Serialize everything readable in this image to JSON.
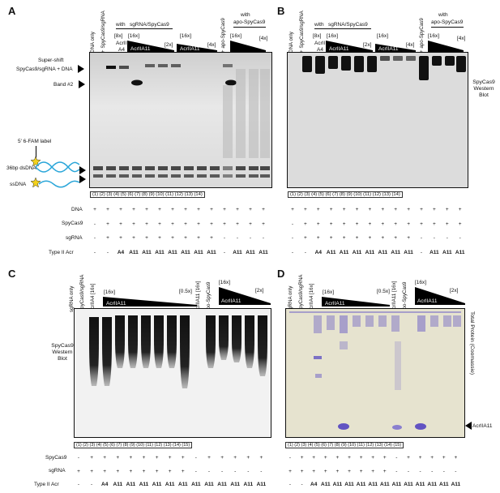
{
  "panels": {
    "A": {
      "label": "A",
      "headers": [
        "DNA only",
        "+ SpyCas9/sgRNA",
        "with",
        "sgRNA/SpyCas9",
        "[8x]",
        "AcrII",
        "A4",
        "[16x]",
        "AcrIIA11",
        "[2x]",
        "[16x]",
        "AcrIIA11",
        "[4x]",
        "+ apo-SpyCas9",
        "with",
        "apo-SpyCas9",
        "[16x]"
      ],
      "left_annotations": [
        "Super-shift",
        "SpyCas9/sgRNA + DNA",
        "Band #2",
        "5' 6-FAM label",
        "36bp dsDNA",
        "ssDNA"
      ],
      "lanes": "(1)   (2)   (3)   (4)   (5)   (6)   (7)   (8)   (9)  (10)  (11)  (12)  (13)  (14)",
      "rows": [
        {
          "label": "DNA",
          "values": [
            "+",
            "+",
            "+",
            "+",
            "+",
            "+",
            "+",
            "+",
            "+",
            "+",
            "+",
            "+",
            "+",
            "+"
          ]
        },
        {
          "label": "SpyCas9",
          "values": [
            "-",
            "+",
            "+",
            "+",
            "+",
            "+",
            "+",
            "+",
            "+",
            "+",
            "+",
            "+",
            "+",
            "+"
          ]
        },
        {
          "label": "sgRNA",
          "values": [
            "-",
            "+",
            "+",
            "+",
            "+",
            "+",
            "+",
            "+",
            "+",
            "+",
            "-",
            "-",
            "-",
            "-"
          ]
        },
        {
          "label": "Type II Acr",
          "values": [
            "-",
            "-",
            "A4",
            "A11",
            "A11",
            "A11",
            "A11",
            "A11",
            "A11",
            "A11",
            "-",
            "A11",
            "A11",
            "A11"
          ]
        }
      ]
    },
    "B": {
      "label": "B",
      "headers": [
        "DNA only",
        "+ SpyCas9/sgRNA",
        "with",
        "sgRNA/SpyCas9",
        "[8x]",
        "AcrII",
        "A4",
        "[16x]",
        "AcrIIA11",
        "[2x]",
        "[16x]",
        "AcrIIA11",
        "[4x]",
        "+ apo-SpyCas9",
        "with",
        "apo-SpyCas9",
        "[16x]"
      ],
      "side_label": [
        "SpyCas9",
        "Western",
        "Blot"
      ],
      "lanes": "(1)   (2)   (3)   (4)   (5)   (6)   (7)   (8)   (9)  (10)  (11)  (12)  (13)  (14)",
      "rows": [
        {
          "label": "",
          "values": [
            "+",
            "+",
            "+",
            "+",
            "+",
            "+",
            "+",
            "+",
            "+",
            "+",
            "+",
            "+",
            "+",
            "+"
          ]
        },
        {
          "label": "",
          "values": [
            "-",
            "+",
            "+",
            "+",
            "+",
            "+",
            "+",
            "+",
            "+",
            "+",
            "+",
            "+",
            "+",
            "+"
          ]
        },
        {
          "label": "",
          "values": [
            "-",
            "+",
            "+",
            "+",
            "+",
            "+",
            "+",
            "+",
            "+",
            "+",
            "-",
            "-",
            "-",
            "-"
          ]
        },
        {
          "label": "",
          "values": [
            "-",
            "-",
            "A4",
            "A11",
            "A11",
            "A11",
            "A11",
            "A11",
            "A11",
            "A11",
            "-",
            "A11",
            "A11",
            "A11"
          ]
        }
      ]
    },
    "C": {
      "label": "C",
      "headers": [
        "sgRNA only",
        "SpyCas9/sgRNA",
        "AcrIIA4 [16x]",
        "[16x]",
        "AcrIIA11",
        "[0.5x]",
        "AcrIIA11 [16x]",
        "apo-SpyCas9",
        "[16x]",
        "AcrIIA11",
        "[2x]"
      ],
      "side_label": [
        "SpyCas9",
        "Western",
        "Blot"
      ],
      "lanes": "(1)   (2)   (3)   (4)   (5)   (6)   (7)   (8)   (9)  (10)  (11)  (12)  (13)  (14)  (15)",
      "rows": [
        {
          "label": "SpyCas9",
          "values": [
            "-",
            "+",
            "+",
            "+",
            "+",
            "+",
            "+",
            "+",
            "+",
            "-",
            "+",
            "+",
            "+",
            "+",
            "+"
          ]
        },
        {
          "label": "sgRNA",
          "values": [
            "+",
            "+",
            "+",
            "+",
            "+",
            "+",
            "+",
            "+",
            "+",
            "-",
            "-",
            "-",
            "-",
            "-",
            "-"
          ]
        },
        {
          "label": "Type II Acr",
          "values": [
            "-",
            "-",
            "A4",
            "A11",
            "A11",
            "A11",
            "A11",
            "A11",
            "A11",
            "A11",
            "A11",
            "A11",
            "A11",
            "A11",
            "A11"
          ]
        }
      ]
    },
    "D": {
      "label": "D",
      "headers": [
        "sgRNA only",
        "SpyCas9/sgRNA",
        "AcrIIA4 [16x]",
        "[16x]",
        "AcrIIA11",
        "[0.5x]",
        "AcrIIA11 [16x]",
        "apo-SpyCas9",
        "[16x]",
        "AcrIIA11",
        "[2x]"
      ],
      "side_label": "Total Protein (Coomassie)",
      "arrow_label": "AcrIIA11",
      "lanes": "(1)   (2)   (3)   (4)   (5)   (6)   (7)   (8)   (9)  (10)  (11)  (12)  (13)  (14)  (15)",
      "rows": [
        {
          "label": "",
          "values": [
            "-",
            "+",
            "+",
            "+",
            "+",
            "+",
            "+",
            "+",
            "+",
            "-",
            "+",
            "+",
            "+",
            "+",
            "+"
          ]
        },
        {
          "label": "",
          "values": [
            "+",
            "+",
            "+",
            "+",
            "+",
            "+",
            "+",
            "+",
            "+",
            "-",
            "-",
            "-",
            "-",
            "-",
            "-"
          ]
        },
        {
          "label": "",
          "values": [
            "-",
            "-",
            "A4",
            "A11",
            "A11",
            "A11",
            "A11",
            "A11",
            "A11",
            "A11",
            "A11",
            "A11",
            "A11",
            "A11",
            "A11"
          ]
        }
      ]
    }
  }
}
